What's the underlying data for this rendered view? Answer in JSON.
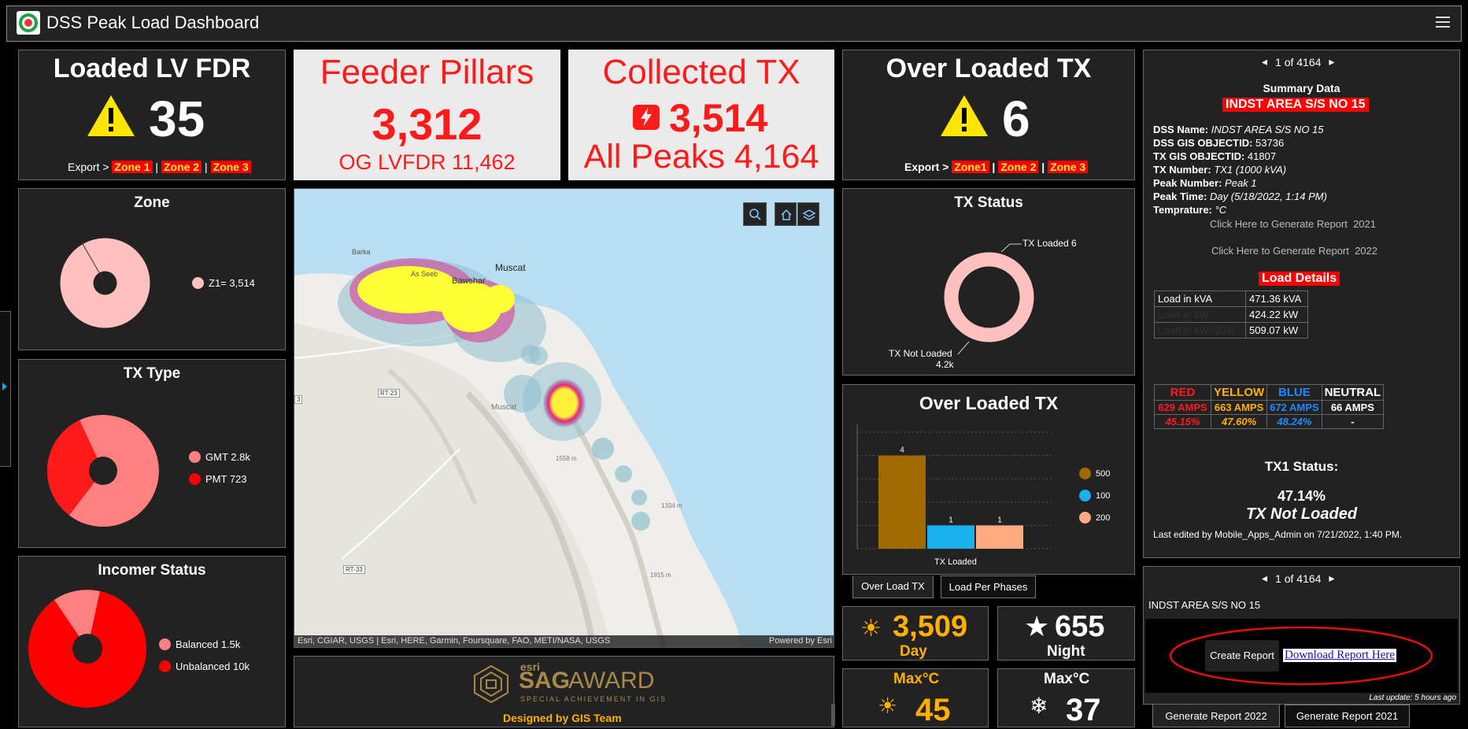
{
  "header": {
    "title": "DSS Peak Load Dashboard"
  },
  "loaded_lv": {
    "title": "Loaded LV FDR",
    "value": "35",
    "export_label": "Export >",
    "zones": [
      "Zone 1",
      "Zone 2",
      "Zone 3"
    ]
  },
  "feeder_pillars": {
    "title": "Feeder Pillars",
    "value": "3,312",
    "sub": "OG LVFDR 11,462"
  },
  "collected_tx": {
    "title": "Collected TX",
    "value": "3,514",
    "sub": "All Peaks 4,164"
  },
  "over_loaded_tx": {
    "title": "Over Loaded TX",
    "value": "6",
    "export_label": "Export >",
    "zones": [
      "Zone1",
      "Zone 2",
      "Zone 3"
    ]
  },
  "zone_chart": {
    "title": "Zone",
    "legend": [
      {
        "label": "Z1= 3,514",
        "color": "#ffc0c0"
      }
    ]
  },
  "tx_type_chart": {
    "title": "TX Type",
    "legend": [
      {
        "label": "GMT 2.8k",
        "color": "#ff8080"
      },
      {
        "label": "PMT 723",
        "color": "#ff0000"
      }
    ]
  },
  "incomer_chart": {
    "title": "Incomer Status",
    "legend": [
      {
        "label": "Balanced 1.5k",
        "color": "#ff8080"
      },
      {
        "label": "Unbalanced 10k",
        "color": "#ff0000"
      }
    ]
  },
  "map": {
    "labels": {
      "barka": "Barka",
      "seeb": "As Seeb",
      "bawshar": "Bawshar",
      "muscat": "Muscat",
      "muscat2": "Muscat",
      "rt23": "RT-23",
      "rt33": "RT-33",
      "r3": "3",
      "e1558": "1558 m",
      "e1334": "1334 m",
      "e1915": "1915 m"
    },
    "attribution": "Esri, CGIAR, USGS | Esri, HERE, Garmin, Foursquare, FAO, METI/NASA, USGS",
    "powered": "Powered by Esri"
  },
  "award": {
    "small": "esri",
    "big1": "SAG",
    "big2": "AWARD",
    "sub": "SPECIAL ACHIEVEMENT IN GIS",
    "designed": "Designed by GIS Team"
  },
  "tx_status": {
    "title": "TX Status",
    "loaded_label": "TX Loaded 6",
    "not_loaded_label": "TX Not Loaded",
    "not_loaded_value": "4.2k"
  },
  "over_loaded_chart": {
    "title": "Over Loaded TX",
    "xlabel": "TX Loaded",
    "legend": [
      {
        "label": "500",
        "color": "#a06a00"
      },
      {
        "label": "100",
        "color": "#1ab0f0"
      },
      {
        "label": "200",
        "color": "#ffaa80"
      }
    ],
    "tabs": [
      "Over Load TX",
      "Load Per Phases"
    ]
  },
  "chart_data": {
    "type": "bar",
    "categories": [
      "TX Loaded"
    ],
    "series": [
      {
        "name": "500",
        "values": [
          4
        ]
      },
      {
        "name": "100",
        "values": [
          1
        ]
      },
      {
        "name": "200",
        "values": [
          1
        ]
      }
    ],
    "title": "Over Loaded TX",
    "xlabel": "TX Loaded",
    "ylabel": "",
    "ylim": [
      0,
      5
    ]
  },
  "day_night": {
    "day_value": "3,509",
    "day_label": "Day",
    "night_value": "655",
    "night_label": "Night"
  },
  "temps": {
    "label1": "Max°C",
    "value1": "45",
    "label2": "Max°C",
    "value2": "37"
  },
  "summary": {
    "pager": "1 of 4164",
    "heading": "Summary Data",
    "station": "INDST AREA S/S NO 15",
    "fields": [
      {
        "key": "DSS Name:",
        "value": "INDST AREA S/S NO 15"
      },
      {
        "key": "DSS GIS OBJECTID:",
        "value": "53736"
      },
      {
        "key": "TX GIS OBJECTID:",
        "value": "41807"
      },
      {
        "key": "TX Number:",
        "value": "TX1 (1000 kVA)"
      },
      {
        "key": "Peak Number:",
        "value": "Peak 1"
      },
      {
        "key": "Peak Time:",
        "value": "Day (5/18/2022, 1:14 PM)"
      },
      {
        "key": "Temprature:",
        "value": "°C"
      }
    ],
    "report2021": "Click Here to Generate Report  2021",
    "report2022": "Click Here to Generate Report  2022",
    "load_details_title": "Load Details",
    "load_rows": [
      {
        "label": "Load in kVA",
        "value": "471.36 kVA"
      },
      {
        "label": "Load in kW",
        "value": "424.22 kW"
      },
      {
        "label": "Load in kW=20%",
        "value": "509.07 kW"
      }
    ],
    "phases": {
      "headers": [
        "RED",
        "YELLOW",
        "BLUE",
        "NEUTRAL"
      ],
      "amps": [
        "629 AMPS",
        "663 AMPS",
        "672 AMPS",
        "66 AMPS"
      ],
      "pct": [
        "45.15%",
        "47.60%",
        "48.24%",
        "-"
      ]
    },
    "tx_status_title": "TX1 Status:",
    "tx_status_pct": "47.14%",
    "tx_status_text": "TX Not Loaded",
    "last_edited": "Last edited by Mobile_Apps_Admin on 7/21/2022, 1:40 PM."
  },
  "report_panel": {
    "pager": "1 of 4164",
    "station": "INDST AREA S/S NO 15",
    "create": "Create Report",
    "download": "Download Report Here",
    "last_update": "Last update: 5 hours ago",
    "tabs": [
      "Generate Report 2022",
      "Generate Report 2021"
    ]
  }
}
